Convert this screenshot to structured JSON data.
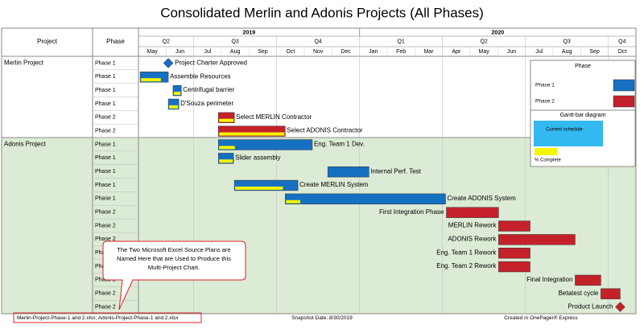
{
  "chart_data": {
    "type": "gantt",
    "title": "Consolidated Merlin and Adonis Projects (All Phases)",
    "column_headers": [
      "Project",
      "Phase"
    ],
    "years": [
      {
        "label": "2019",
        "span": 8
      },
      {
        "label": "2020",
        "span": 10
      }
    ],
    "quarters": [
      {
        "label": "Q2",
        "span": 2
      },
      {
        "label": "Q3",
        "span": 3
      },
      {
        "label": "Q4",
        "span": 3
      },
      {
        "label": "Q1",
        "span": 3
      },
      {
        "label": "Q2",
        "span": 3
      },
      {
        "label": "Q3",
        "span": 3
      },
      {
        "label": "Q4",
        "span": 1
      }
    ],
    "months": [
      "May",
      "Jun",
      "Jul",
      "Aug",
      "Sep",
      "Oct",
      "Nov",
      "Dec",
      "Jan",
      "Feb",
      "Mar",
      "Apr",
      "May",
      "Jun",
      "Jul",
      "Aug",
      "Sep",
      "Oct"
    ],
    "groups": [
      {
        "name": "Merlin Project",
        "rows": 6,
        "background": "#ffffff"
      },
      {
        "name": "Adonis Project",
        "rows": 13,
        "background": "#dcebd5"
      }
    ],
    "series": [
      {
        "name": "Phase 1",
        "color": "#1670c2"
      },
      {
        "name": "Phase 2",
        "color": "#c4212b"
      }
    ],
    "progress_color": "#f5f500",
    "tasks": [
      {
        "phase": "Phase 1",
        "series": 0,
        "name": "Project Charter Approved",
        "milestone": true,
        "start": 1.08,
        "label_position": "right"
      },
      {
        "phase": "Phase 1",
        "series": 0,
        "name": "Assemble Resources",
        "start": 0.06,
        "end": 1.08,
        "complete": 75,
        "label_position": "right"
      },
      {
        "phase": "Phase 1",
        "series": 0,
        "name": "Centrifugal barrier",
        "start": 1.25,
        "end": 1.55,
        "complete": 100,
        "label_position": "right"
      },
      {
        "phase": "Phase 1",
        "series": 0,
        "name": "D'Souza perimeter",
        "start": 1.08,
        "end": 1.46,
        "complete": 100,
        "label_position": "right"
      },
      {
        "phase": "Phase 2",
        "series": 1,
        "name": "Select MERLIN Contractor",
        "start": 2.89,
        "end": 3.47,
        "complete": 100,
        "label_position": "right"
      },
      {
        "phase": "Phase 2",
        "series": 1,
        "name": "Select ADONIS Contractor",
        "start": 2.89,
        "end": 5.31,
        "complete": 100,
        "label_position": "right"
      },
      {
        "phase": "Phase 1",
        "series": 0,
        "name": "Eng. Team 1 Dev.",
        "start": 2.89,
        "end": 6.29,
        "complete": 17,
        "label_position": "right"
      },
      {
        "phase": "Phase 1",
        "series": 0,
        "name": "Slider assembly",
        "start": 2.89,
        "end": 3.44,
        "complete": 100,
        "label_position": "right"
      },
      {
        "phase": "Phase 1",
        "series": 0,
        "name": "Internal Perf. Test",
        "start": 6.85,
        "end": 8.34,
        "complete": 0,
        "label_position": "right"
      },
      {
        "phase": "Phase 1",
        "series": 0,
        "name": "Create MERLIN System",
        "start": 3.47,
        "end": 5.77,
        "complete": 77,
        "label_position": "right"
      },
      {
        "phase": "Phase 1",
        "series": 0,
        "name": "Create ADONIS System",
        "start": 5.31,
        "end": 11.11,
        "complete": 9,
        "label_position": "right"
      },
      {
        "phase": "Phase 2",
        "series": 1,
        "name": "First Integration Phase",
        "start": 11.14,
        "end": 13.03,
        "complete": 0,
        "label_position": "left"
      },
      {
        "phase": "Phase 2",
        "series": 1,
        "name": "MERLIN Rework",
        "start": 13.03,
        "end": 14.17,
        "complete": 0,
        "label_position": "left"
      },
      {
        "phase": "Phase 2",
        "series": 1,
        "name": "ADONIS Rework",
        "start": 13.03,
        "end": 15.8,
        "complete": 0,
        "label_position": "left"
      },
      {
        "phase": "Phase 2",
        "series": 1,
        "name": "Eng. Team 1 Rework",
        "start": 13.03,
        "end": 14.17,
        "complete": 0,
        "label_position": "left"
      },
      {
        "phase": "Phase 2",
        "series": 1,
        "name": "Eng. Team 2 Rework",
        "start": 13.03,
        "end": 14.17,
        "complete": 0,
        "label_position": "left"
      },
      {
        "phase": "Phase 2",
        "series": 1,
        "name": "Final Integration",
        "start": 15.8,
        "end": 16.73,
        "complete": 0,
        "label_position": "left"
      },
      {
        "phase": "Phase 2",
        "series": 1,
        "name": "Betatest cycle",
        "start": 16.73,
        "end": 17.43,
        "complete": 0,
        "label_position": "left"
      },
      {
        "phase": "Phase 2",
        "series": 1,
        "name": "Product Launch",
        "milestone": true,
        "start": 17.43,
        "label_position": "left"
      }
    ],
    "legend": {
      "title": "Phase",
      "bar_title": "Gantt-bar diagram",
      "current": "Current schedule",
      "complete": "% Complete",
      "current_color": "#33b8f0"
    },
    "callout": [
      "The Two Microsoft Excel Source Plans are",
      "Named Here that are Used to Produce this",
      "Multi-Project Chart."
    ],
    "footer": {
      "sources": "Merlin-Project-Phase-1 and 2.xlsx; Adonis-Project-Phase-1 and 2.xlsx",
      "snapshot": "Snapshot Date: 8/30/2019",
      "created": "Created in OnePager® Express"
    }
  }
}
